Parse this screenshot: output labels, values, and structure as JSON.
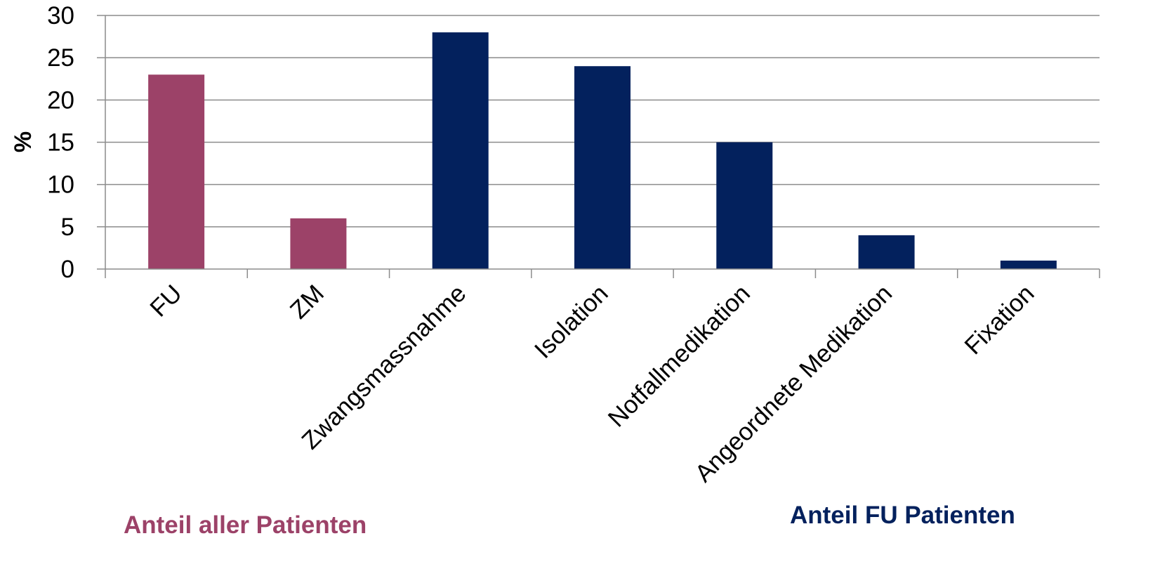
{
  "chart_data": {
    "type": "bar",
    "categories": [
      "FU",
      "ZM",
      "Zwangsmassnahme",
      "Isolation",
      "Notfallmedikation",
      "Angeordnete Medikation",
      "Fixation"
    ],
    "values": [
      23,
      6,
      28,
      24,
      15,
      4,
      1
    ],
    "groups": [
      "all",
      "all",
      "fu",
      "fu",
      "fu",
      "fu",
      "fu"
    ],
    "ylabel": "%",
    "ylim": [
      0,
      30
    ],
    "yticks": [
      0,
      5,
      10,
      15,
      20,
      25,
      30
    ],
    "grid": true,
    "group_captions": {
      "all": "Anteil aller Patienten",
      "fu": "Anteil FU Patienten"
    },
    "colors": {
      "all": "#9c4268",
      "fu": "#03215d",
      "grid": "#8c8c8c",
      "axis": "#8c8c8c",
      "text": "#000000"
    }
  }
}
